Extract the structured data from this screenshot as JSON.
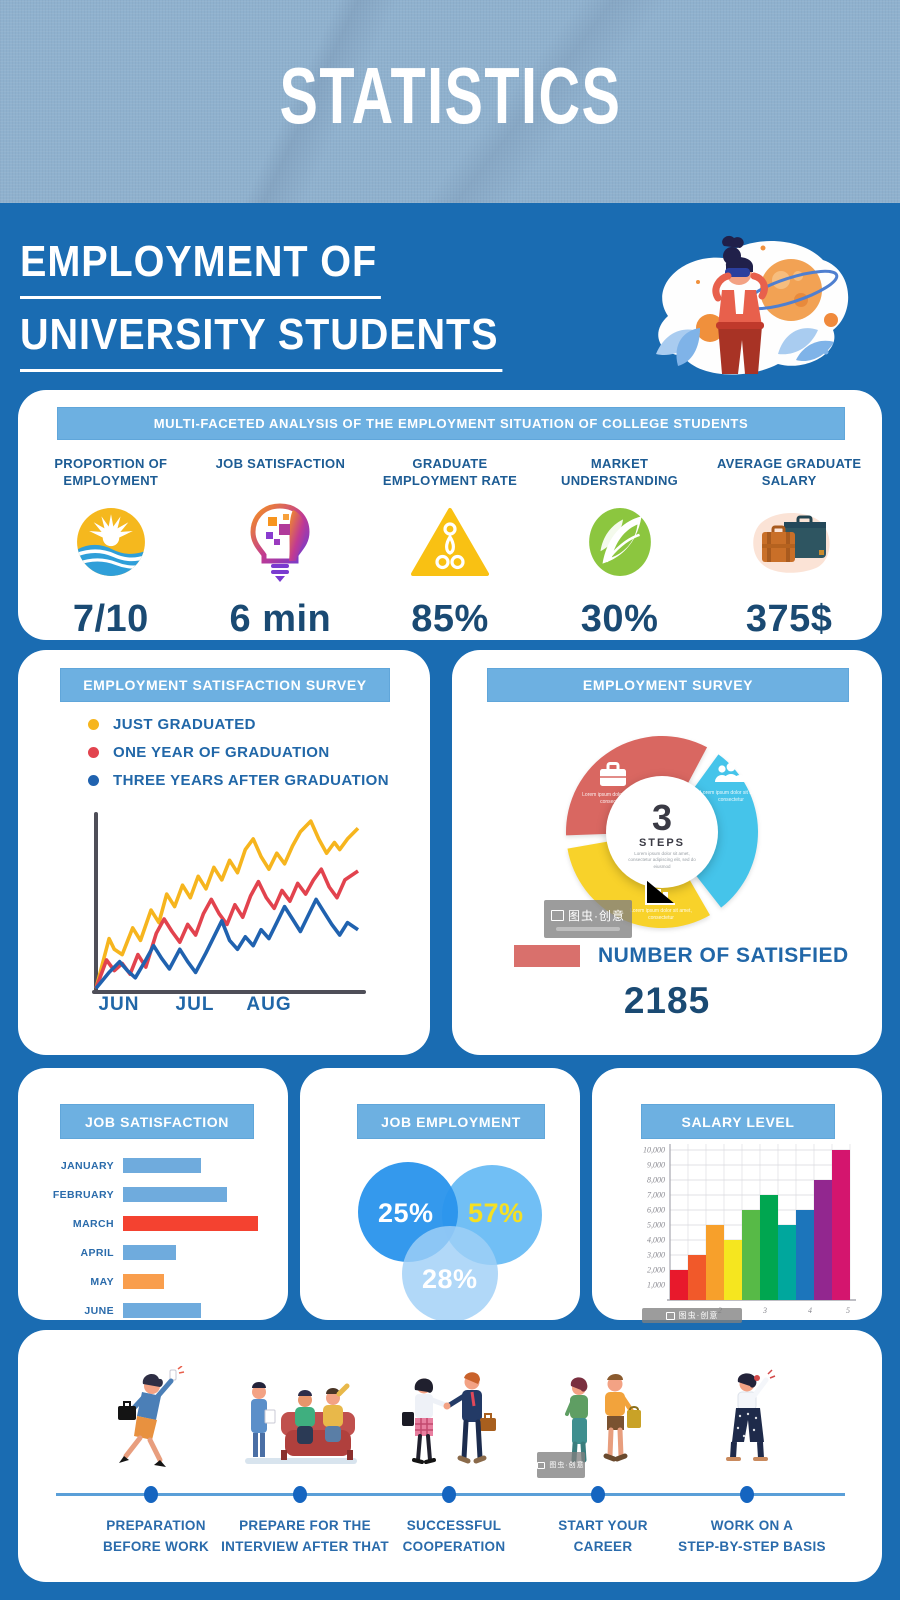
{
  "header": {
    "title": "STATISTICS"
  },
  "hero": {
    "title_line1": "EMPLOYMENT OF",
    "title_line2": "UNIVERSITY STUDENTS"
  },
  "overview": {
    "banner": "MULTI-FACETED ANALYSIS OF THE EMPLOYMENT SITUATION OF COLLEGE STUDENTS",
    "stats": [
      {
        "label": "PROPORTION OF EMPLOYMENT",
        "value": "7/10",
        "icon": "sun-wave-icon"
      },
      {
        "label": "JOB SATISFACTION",
        "value": "6 min",
        "icon": "head-bulb-icon"
      },
      {
        "label": "GRADUATE EMPLOYMENT RATE",
        "value": "85%",
        "icon": "pyramid-icon"
      },
      {
        "label": "MARKET UNDERSTANDING",
        "value": "30%",
        "icon": "leaf-icon"
      },
      {
        "label": "AVERAGE GRADUATE SALARY",
        "value": "375$",
        "icon": "luggage-icon"
      }
    ]
  },
  "satisfaction_survey": {
    "banner": "EMPLOYMENT SATISFACTION SURVEY"
  },
  "employment_survey": {
    "banner": "EMPLOYMENT SURVEY",
    "center": {
      "value": "3",
      "label": "STEPS",
      "note": "Lorem ipsum dolor sit amet, consectetur adipiscing elit, sed do eiusmod"
    }
  },
  "job_satisfaction": {
    "banner": "JOB SATISFACTION"
  },
  "job_employment": {
    "banner": "JOB EMPLOYMENT"
  },
  "salary_level": {
    "banner": "SALARY LEVEL"
  },
  "timeline": {
    "steps": [
      {
        "line1": "PREPARATION",
        "line2": "BEFORE WORK"
      },
      {
        "line1": "PREPARE FOR THE",
        "line2": "INTERVIEW AFTER THAT"
      },
      {
        "line1": "SUCCESSFUL",
        "line2": "COOPERATION"
      },
      {
        "line1": "START YOUR",
        "line2": "CAREER"
      },
      {
        "line1": "WORK ON A",
        "line2": "STEP-BY-STEP BASIS"
      }
    ]
  },
  "watermark": {
    "text": "图虫·创意"
  },
  "chart_data": [
    {
      "id": "employment_satisfaction_line",
      "type": "line",
      "title": "EMPLOYMENT SATISFACTION SURVEY",
      "x_ticks": [
        "JUN",
        "JUL",
        "AUG"
      ],
      "ylim": [
        0,
        100
      ],
      "grid": false,
      "legend_position": "top-left",
      "series": [
        {
          "name": "JUST GRADUATED",
          "color": "#f6b51e",
          "points": [
            [
              0,
              2
            ],
            [
              5,
              30
            ],
            [
              7,
              24
            ],
            [
              10,
              21
            ],
            [
              14,
              36
            ],
            [
              17,
              29
            ],
            [
              21,
              46
            ],
            [
              24,
              39
            ],
            [
              27,
              55
            ],
            [
              30,
              48
            ],
            [
              33,
              60
            ],
            [
              36,
              53
            ],
            [
              39,
              65
            ],
            [
              42,
              58
            ],
            [
              45,
              70
            ],
            [
              48,
              63
            ],
            [
              51,
              74
            ],
            [
              54,
              67
            ],
            [
              57,
              80
            ],
            [
              60,
              86
            ],
            [
              63,
              76
            ],
            [
              66,
              69
            ],
            [
              69,
              78
            ],
            [
              72,
              72
            ],
            [
              75,
              82
            ],
            [
              78,
              90
            ],
            [
              82,
              96
            ],
            [
              85,
              86
            ],
            [
              88,
              78
            ],
            [
              91,
              84
            ],
            [
              93,
              80
            ],
            [
              96,
              86
            ],
            [
              100,
              92
            ]
          ]
        },
        {
          "name": "ONE YEAR OF GRADUATION",
          "color": "#e2434e",
          "points": [
            [
              0,
              2
            ],
            [
              4,
              18
            ],
            [
              7,
              12
            ],
            [
              10,
              16
            ],
            [
              13,
              10
            ],
            [
              16,
              21
            ],
            [
              19,
              14
            ],
            [
              23,
              33
            ],
            [
              26,
              41
            ],
            [
              29,
              34
            ],
            [
              32,
              28
            ],
            [
              35,
              38
            ],
            [
              38,
              32
            ],
            [
              41,
              44
            ],
            [
              44,
              52
            ],
            [
              47,
              44
            ],
            [
              50,
              38
            ],
            [
              53,
              49
            ],
            [
              56,
              42
            ],
            [
              59,
              54
            ],
            [
              62,
              62
            ],
            [
              65,
              53
            ],
            [
              68,
              47
            ],
            [
              71,
              57
            ],
            [
              74,
              51
            ],
            [
              77,
              61
            ],
            [
              80,
              55
            ],
            [
              83,
              63
            ],
            [
              86,
              69
            ],
            [
              89,
              59
            ],
            [
              92,
              53
            ],
            [
              95,
              63
            ],
            [
              100,
              68
            ]
          ]
        },
        {
          "name": "THREE YEARS AFTER GRADUATION",
          "color": "#2062af",
          "points": [
            [
              0,
              2
            ],
            [
              5,
              11
            ],
            [
              9,
              17
            ],
            [
              12,
              12
            ],
            [
              15,
              8
            ],
            [
              19,
              18
            ],
            [
              22,
              26
            ],
            [
              25,
              19
            ],
            [
              28,
              13
            ],
            [
              32,
              24
            ],
            [
              35,
              17
            ],
            [
              38,
              11
            ],
            [
              42,
              22
            ],
            [
              45,
              31
            ],
            [
              48,
              40
            ],
            [
              51,
              29
            ],
            [
              54,
              24
            ],
            [
              57,
              31
            ],
            [
              60,
              26
            ],
            [
              63,
              35
            ],
            [
              66,
              30
            ],
            [
              69,
              39
            ],
            [
              72,
              48
            ],
            [
              75,
              41
            ],
            [
              78,
              34
            ],
            [
              81,
              43
            ],
            [
              84,
              52
            ],
            [
              87,
              45
            ],
            [
              90,
              38
            ],
            [
              93,
              32
            ],
            [
              96,
              39
            ],
            [
              100,
              35
            ]
          ]
        }
      ]
    },
    {
      "id": "employment_survey_donut",
      "type": "pie",
      "title": "EMPLOYMENT SURVEY",
      "center_value": "3",
      "center_label": "STEPS",
      "segments": [
        {
          "name": "briefcase",
          "color": "#d96761",
          "value": 33.3,
          "angles": [
            62,
            182
          ],
          "note": "Lorem ipsum dolor sit amet, consectetur"
        },
        {
          "name": "team",
          "color": "#45c4ea",
          "value": 33.3,
          "angles": [
            -52,
            54
          ],
          "note": "Lorem ipsum dolor sit amet, consectetur"
        },
        {
          "name": "growth-chart",
          "color": "#f8d22a",
          "value": 33.3,
          "angles": [
            190,
            300
          ],
          "note": "Lorem ipsum dolor sit amet, consectetur"
        }
      ],
      "legend": {
        "swatch_color": "#d9706c",
        "label": "NUMBER OF SATISFIED",
        "value": "2185"
      }
    },
    {
      "id": "job_satisfaction_bars",
      "type": "bar",
      "orientation": "horizontal",
      "title": "JOB SATISFACTION",
      "categories": [
        "JANUARY",
        "FEBRUARY",
        "MARCH",
        "APRIL",
        "MAY",
        "JUNE"
      ],
      "values": [
        58,
        77,
        100,
        39,
        30,
        58
      ],
      "value_note": "relative length, max = 100",
      "colors": [
        "#6fabdd",
        "#6fabdd",
        "#f44230",
        "#6fabdd",
        "#f99e4d",
        "#6fabdd"
      ]
    },
    {
      "id": "job_employment_venn",
      "type": "venn",
      "title": "JOB EMPLOYMENT",
      "sets": [
        {
          "label": "25%",
          "color": "rgba(41,148,236,0.95)",
          "text_color": "#ffffff"
        },
        {
          "label": "57%",
          "color": "rgba(88,180,243,0.85)",
          "text_color": "#f5e023"
        },
        {
          "label": "28%",
          "color": "rgba(160,208,247,0.82)",
          "text_color": "#ffffff"
        }
      ]
    },
    {
      "id": "salary_level_bars",
      "type": "bar",
      "orientation": "vertical",
      "title": "SALARY LEVEL",
      "values": [
        2000,
        3000,
        5000,
        4000,
        6000,
        7000,
        5000,
        6000,
        8000,
        10000
      ],
      "colors": [
        "#e8192c",
        "#f1592a",
        "#f7a02b",
        "#f5e61f",
        "#57ba47",
        "#00a650",
        "#00a79d",
        "#1c75bb",
        "#92278f",
        "#d4156e"
      ],
      "y_ticks": [
        "1,000",
        "2,000",
        "3,000",
        "4,000",
        "5,000",
        "6,000",
        "7,000",
        "8,000",
        "9,000",
        "10,000"
      ],
      "x_ticks": [
        "2",
        "3",
        "4",
        "5"
      ],
      "ylim": [
        0,
        10000
      ],
      "grid": true
    }
  ]
}
